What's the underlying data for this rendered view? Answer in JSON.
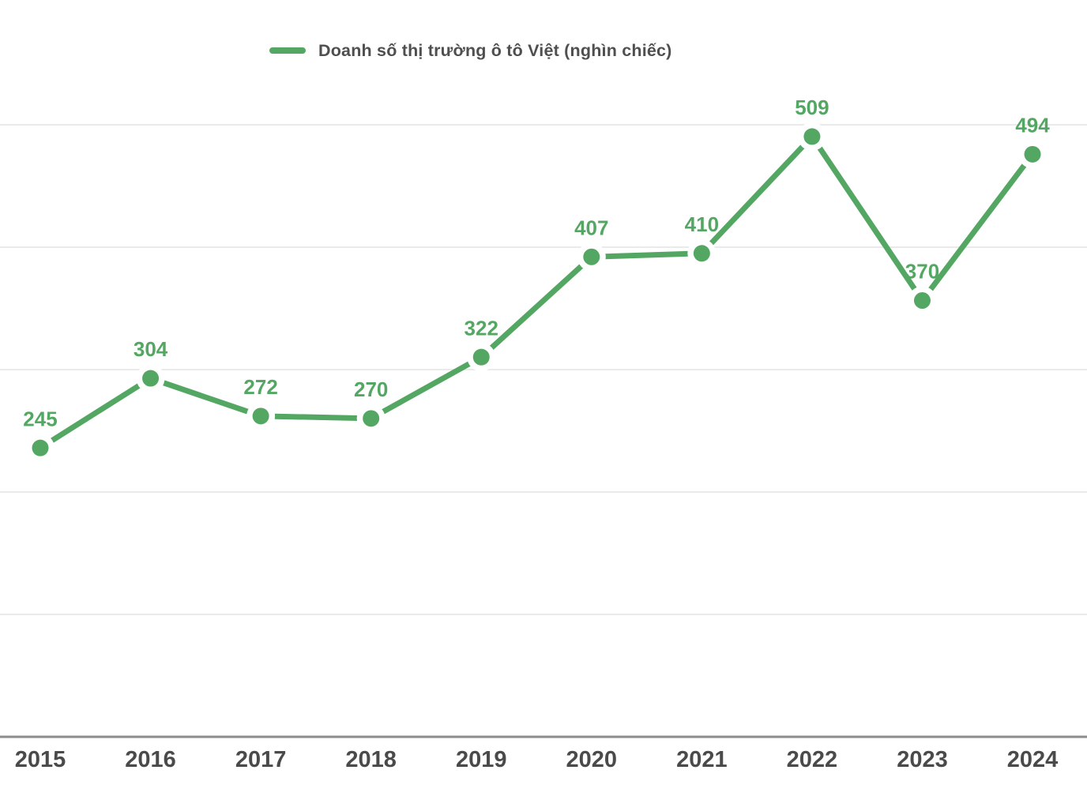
{
  "legend": {
    "label": "Doanh số thị trường ô tô Việt (nghìn chiếc)"
  },
  "chart_data": {
    "type": "line",
    "title": "Doanh số thị trường ô tô Việt (nghìn chiếc)",
    "categories": [
      "2015",
      "2016",
      "2017",
      "2018",
      "2019",
      "2020",
      "2021",
      "2022",
      "2023",
      "2024"
    ],
    "series": [
      {
        "name": "Doanh số thị trường ô tô Việt (nghìn chiếc)",
        "values": [
          245,
          304,
          272,
          270,
          322,
          407,
          410,
          509,
          370,
          494
        ]
      }
    ],
    "xlabel": "",
    "ylabel": "",
    "ylim": [
      0,
      519
    ],
    "grid": "horizontal-only",
    "gridline_count": 5,
    "y_axis_tick_labels_visible": false,
    "show_point_labels": true,
    "legend_position": "top",
    "colors": {
      "series": "#54A763",
      "data_label": "#54A763",
      "gridline": "#EAEAEA",
      "axis_line": "#8C8C8C",
      "tick_label": "#4A4A4A",
      "legend_text": "#4F4F4F",
      "background": "#FFFFFF"
    }
  }
}
